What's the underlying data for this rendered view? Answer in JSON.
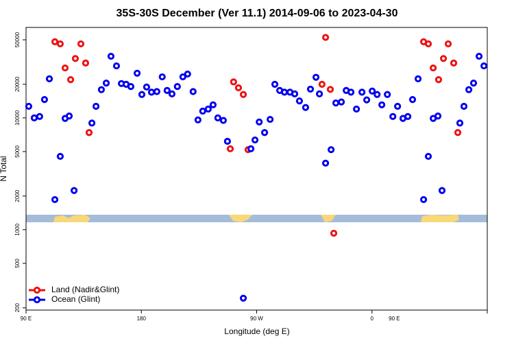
{
  "chart_data": {
    "type": "scatter",
    "title": "35S-30S December (Ver 11.1)   2014-09-06 to 2023-04-30",
    "xlabel": "Longitude (deg E)",
    "ylabel": "N Total",
    "log_y": true,
    "legend": "lower left",
    "xlim": [
      90,
      450
    ],
    "xticks": [
      {
        "value": 90,
        "label": "90 E"
      },
      {
        "value": 180,
        "label": "180"
      },
      {
        "value": 270,
        "label": "90 W"
      },
      {
        "value": 360,
        "label": "0"
      },
      {
        "value": 450,
        "label": "180"
      }
    ],
    "xtick_extra": [
      {
        "value": 450,
        "label": "90 E"
      }
    ],
    "ylim": [
      191,
      64500
    ],
    "yticks": [
      50000,
      20000,
      10000,
      5000,
      2000,
      1000,
      500,
      200
    ],
    "series": [
      {
        "name": "Land (Nadir&Glint)",
        "color": "#ee1111",
        "x": [
          112.5,
          116.7,
          120.5,
          124.8,
          128.5,
          132.8,
          136.5,
          139.2,
          249.4,
          252,
          255.8,
          259.6,
          263.3,
          321,
          323.8,
          327.5,
          330.2,
          400.3,
          404,
          407.8,
          412,
          415.8,
          419.5,
          423.8,
          427
        ],
        "values": [
          48000,
          46000,
          28000,
          22000,
          34000,
          46000,
          31000,
          7400,
          5300,
          21000,
          18600,
          16200,
          5200,
          20000,
          52500,
          18000,
          930,
          48000,
          46000,
          28000,
          22000,
          34000,
          46000,
          31000,
          7400
        ]
      },
      {
        "name": "Ocean (Glint)",
        "color": "#0000ee",
        "x": [
          92.1,
          96.4,
          100.6,
          104.4,
          108.2,
          112.5,
          116.7,
          120.5,
          123.7,
          127.5,
          141.4,
          144.6,
          148.8,
          152.6,
          156.3,
          160.6,
          164.4,
          168.1,
          171.8,
          176.7,
          180.4,
          184.1,
          187.9,
          192.1,
          196.3,
          200.1,
          203.9,
          208.1,
          212.4,
          216.1,
          220.4,
          224.2,
          227.9,
          232.2,
          236,
          239.7,
          244,
          247.2,
          259.6,
          265.5,
          268.7,
          272,
          276.2,
          280.5,
          284.2,
          288,
          291.7,
          296,
          299.7,
          303.4,
          308.2,
          312,
          316.3,
          319,
          323.8,
          328.1,
          331.8,
          336.1,
          339.9,
          343.6,
          347.9,
          352.2,
          355.9,
          360.2,
          364,
          367.7,
          372,
          376.3,
          380,
          384.2,
          388,
          391.7,
          396,
          400.3,
          404,
          407.8,
          411.5,
          414.7,
          428.6,
          431.8,
          435.6,
          439.3,
          443.6,
          447.4
        ],
        "values": [
          12700,
          10000,
          10300,
          14600,
          22400,
          1860,
          4530,
          9900,
          10400,
          2240,
          9000,
          12700,
          17900,
          20500,
          35600,
          29200,
          20300,
          20000,
          19100,
          25100,
          16200,
          18900,
          17000,
          17200,
          23300,
          17600,
          16400,
          19100,
          23300,
          24700,
          17200,
          9600,
          11500,
          12000,
          13100,
          10000,
          9500,
          6180,
          244,
          5300,
          6350,
          9200,
          7400,
          9700,
          20000,
          17600,
          17000,
          17000,
          16400,
          14200,
          12400,
          18100,
          23100,
          16400,
          3940,
          5200,
          13600,
          13900,
          17600,
          17000,
          12000,
          17000,
          14500,
          17400,
          16200,
          13100,
          16200,
          10300,
          12700,
          9900,
          10300,
          14600,
          22400,
          1860,
          4530,
          9900,
          10400,
          2240,
          9000,
          12700,
          17900,
          20500,
          35600,
          29200
        ]
      }
    ]
  }
}
